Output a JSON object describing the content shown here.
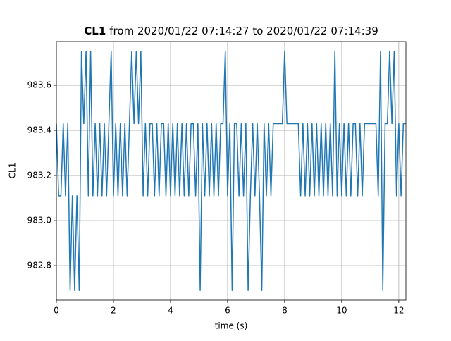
{
  "chart_data": {
    "type": "line",
    "title_bold": "CL1",
    "title": "from 2020/01/22 07:14:27 to 2020/01/22 07:14:39",
    "xlabel": "time (s)",
    "ylabel": "CL1",
    "x": [
      0,
      0.08,
      0.16,
      0.24,
      0.32,
      0.4,
      0.48,
      0.56,
      0.64,
      0.72,
      0.8,
      0.88,
      0.96,
      1.04,
      1.12,
      1.2,
      1.28,
      1.36,
      1.44,
      1.52,
      1.6,
      1.68,
      1.76,
      1.84,
      1.92,
      2,
      2.08,
      2.16,
      2.24,
      2.32,
      2.4,
      2.48,
      2.56,
      2.64,
      2.72,
      2.8,
      2.88,
      2.96,
      3.04,
      3.12,
      3.2,
      3.28,
      3.36,
      3.44,
      3.52,
      3.6,
      3.68,
      3.76,
      3.84,
      3.92,
      4,
      4.08,
      4.16,
      4.24,
      4.32,
      4.4,
      4.48,
      4.56,
      4.64,
      4.72,
      4.8,
      4.88,
      4.96,
      5.04,
      5.12,
      5.2,
      5.28,
      5.36,
      5.44,
      5.52,
      5.6,
      5.68,
      5.76,
      5.84,
      5.92,
      6,
      6.08,
      6.16,
      6.24,
      6.32,
      6.4,
      6.48,
      6.56,
      6.64,
      6.72,
      6.8,
      6.88,
      6.96,
      7.04,
      7.12,
      7.2,
      7.28,
      7.36,
      7.44,
      7.52,
      7.6,
      7.68,
      7.76,
      7.84,
      7.92,
      8,
      8.08,
      8.16,
      8.24,
      8.32,
      8.4,
      8.48,
      8.56,
      8.64,
      8.72,
      8.8,
      8.88,
      8.96,
      9.04,
      9.12,
      9.2,
      9.28,
      9.36,
      9.44,
      9.52,
      9.6,
      9.68,
      9.76,
      9.84,
      9.92,
      10,
      10.08,
      10.16,
      10.24,
      10.32,
      10.4,
      10.48,
      10.56,
      10.64,
      10.72,
      10.8,
      10.88,
      10.96,
      11.04,
      11.12,
      11.2,
      11.28,
      11.36,
      11.44,
      11.52,
      11.6,
      11.68,
      11.76,
      11.84,
      11.92,
      12,
      12.08,
      12.16,
      12.24
    ],
    "series": [
      {
        "color": "#1f77b4",
        "values": [
          983.43,
          983.11,
          983.11,
          983.43,
          983.11,
          983.43,
          982.69,
          983.11,
          982.69,
          983.11,
          982.69,
          983.75,
          983.43,
          983.75,
          983.11,
          983.75,
          983.11,
          983.43,
          983.11,
          983.43,
          983.11,
          983.43,
          983.11,
          983.43,
          983.75,
          983.11,
          983.43,
          983.11,
          983.43,
          983.11,
          983.43,
          983.11,
          983.43,
          983.75,
          983.43,
          983.75,
          983.43,
          983.75,
          983.11,
          983.43,
          983.11,
          983.43,
          983.43,
          983.11,
          983.43,
          983.11,
          983.43,
          983.43,
          983.11,
          983.43,
          983.11,
          983.43,
          983.11,
          983.43,
          983.11,
          983.43,
          983.11,
          983.43,
          983.11,
          983.43,
          983.43,
          983.11,
          983.43,
          982.69,
          983.43,
          983.11,
          983.43,
          983.11,
          983.43,
          983.11,
          983.43,
          983.11,
          983.43,
          983.43,
          983.75,
          983.11,
          983.43,
          982.69,
          983.43,
          983.43,
          983.11,
          983.43,
          983.11,
          983.43,
          982.69,
          983.11,
          983.43,
          983.11,
          983.43,
          983.11,
          982.69,
          983.43,
          983.11,
          983.43,
          983.11,
          983.43,
          983.43,
          983.43,
          983.43,
          983.43,
          983.75,
          983.43,
          983.43,
          983.43,
          983.43,
          983.43,
          983.43,
          983.11,
          983.43,
          983.11,
          983.43,
          983.11,
          983.43,
          983.11,
          983.43,
          983.11,
          983.43,
          983.11,
          983.43,
          983.11,
          983.43,
          983.11,
          983.75,
          983.11,
          983.43,
          983.11,
          983.43,
          983.11,
          983.43,
          983.11,
          983.43,
          983.43,
          983.11,
          983.43,
          983.11,
          983.43,
          983.43,
          983.43,
          983.43,
          983.43,
          983.43,
          983.11,
          983.75,
          982.69,
          983.43,
          983.43,
          983.75,
          983.43,
          983.75,
          983.11,
          983.43,
          983.11,
          983.43,
          983.43
        ]
      }
    ],
    "xlim": [
      0,
      12.25
    ],
    "ylim": [
      982.647,
      983.794
    ],
    "xticks": [
      0,
      2,
      4,
      6,
      8,
      10,
      12
    ],
    "yticks": [
      982.8,
      {
        "value": 983,
        "label": "983.0"
      },
      983.2,
      983.4,
      983.6
    ],
    "grid": true
  }
}
